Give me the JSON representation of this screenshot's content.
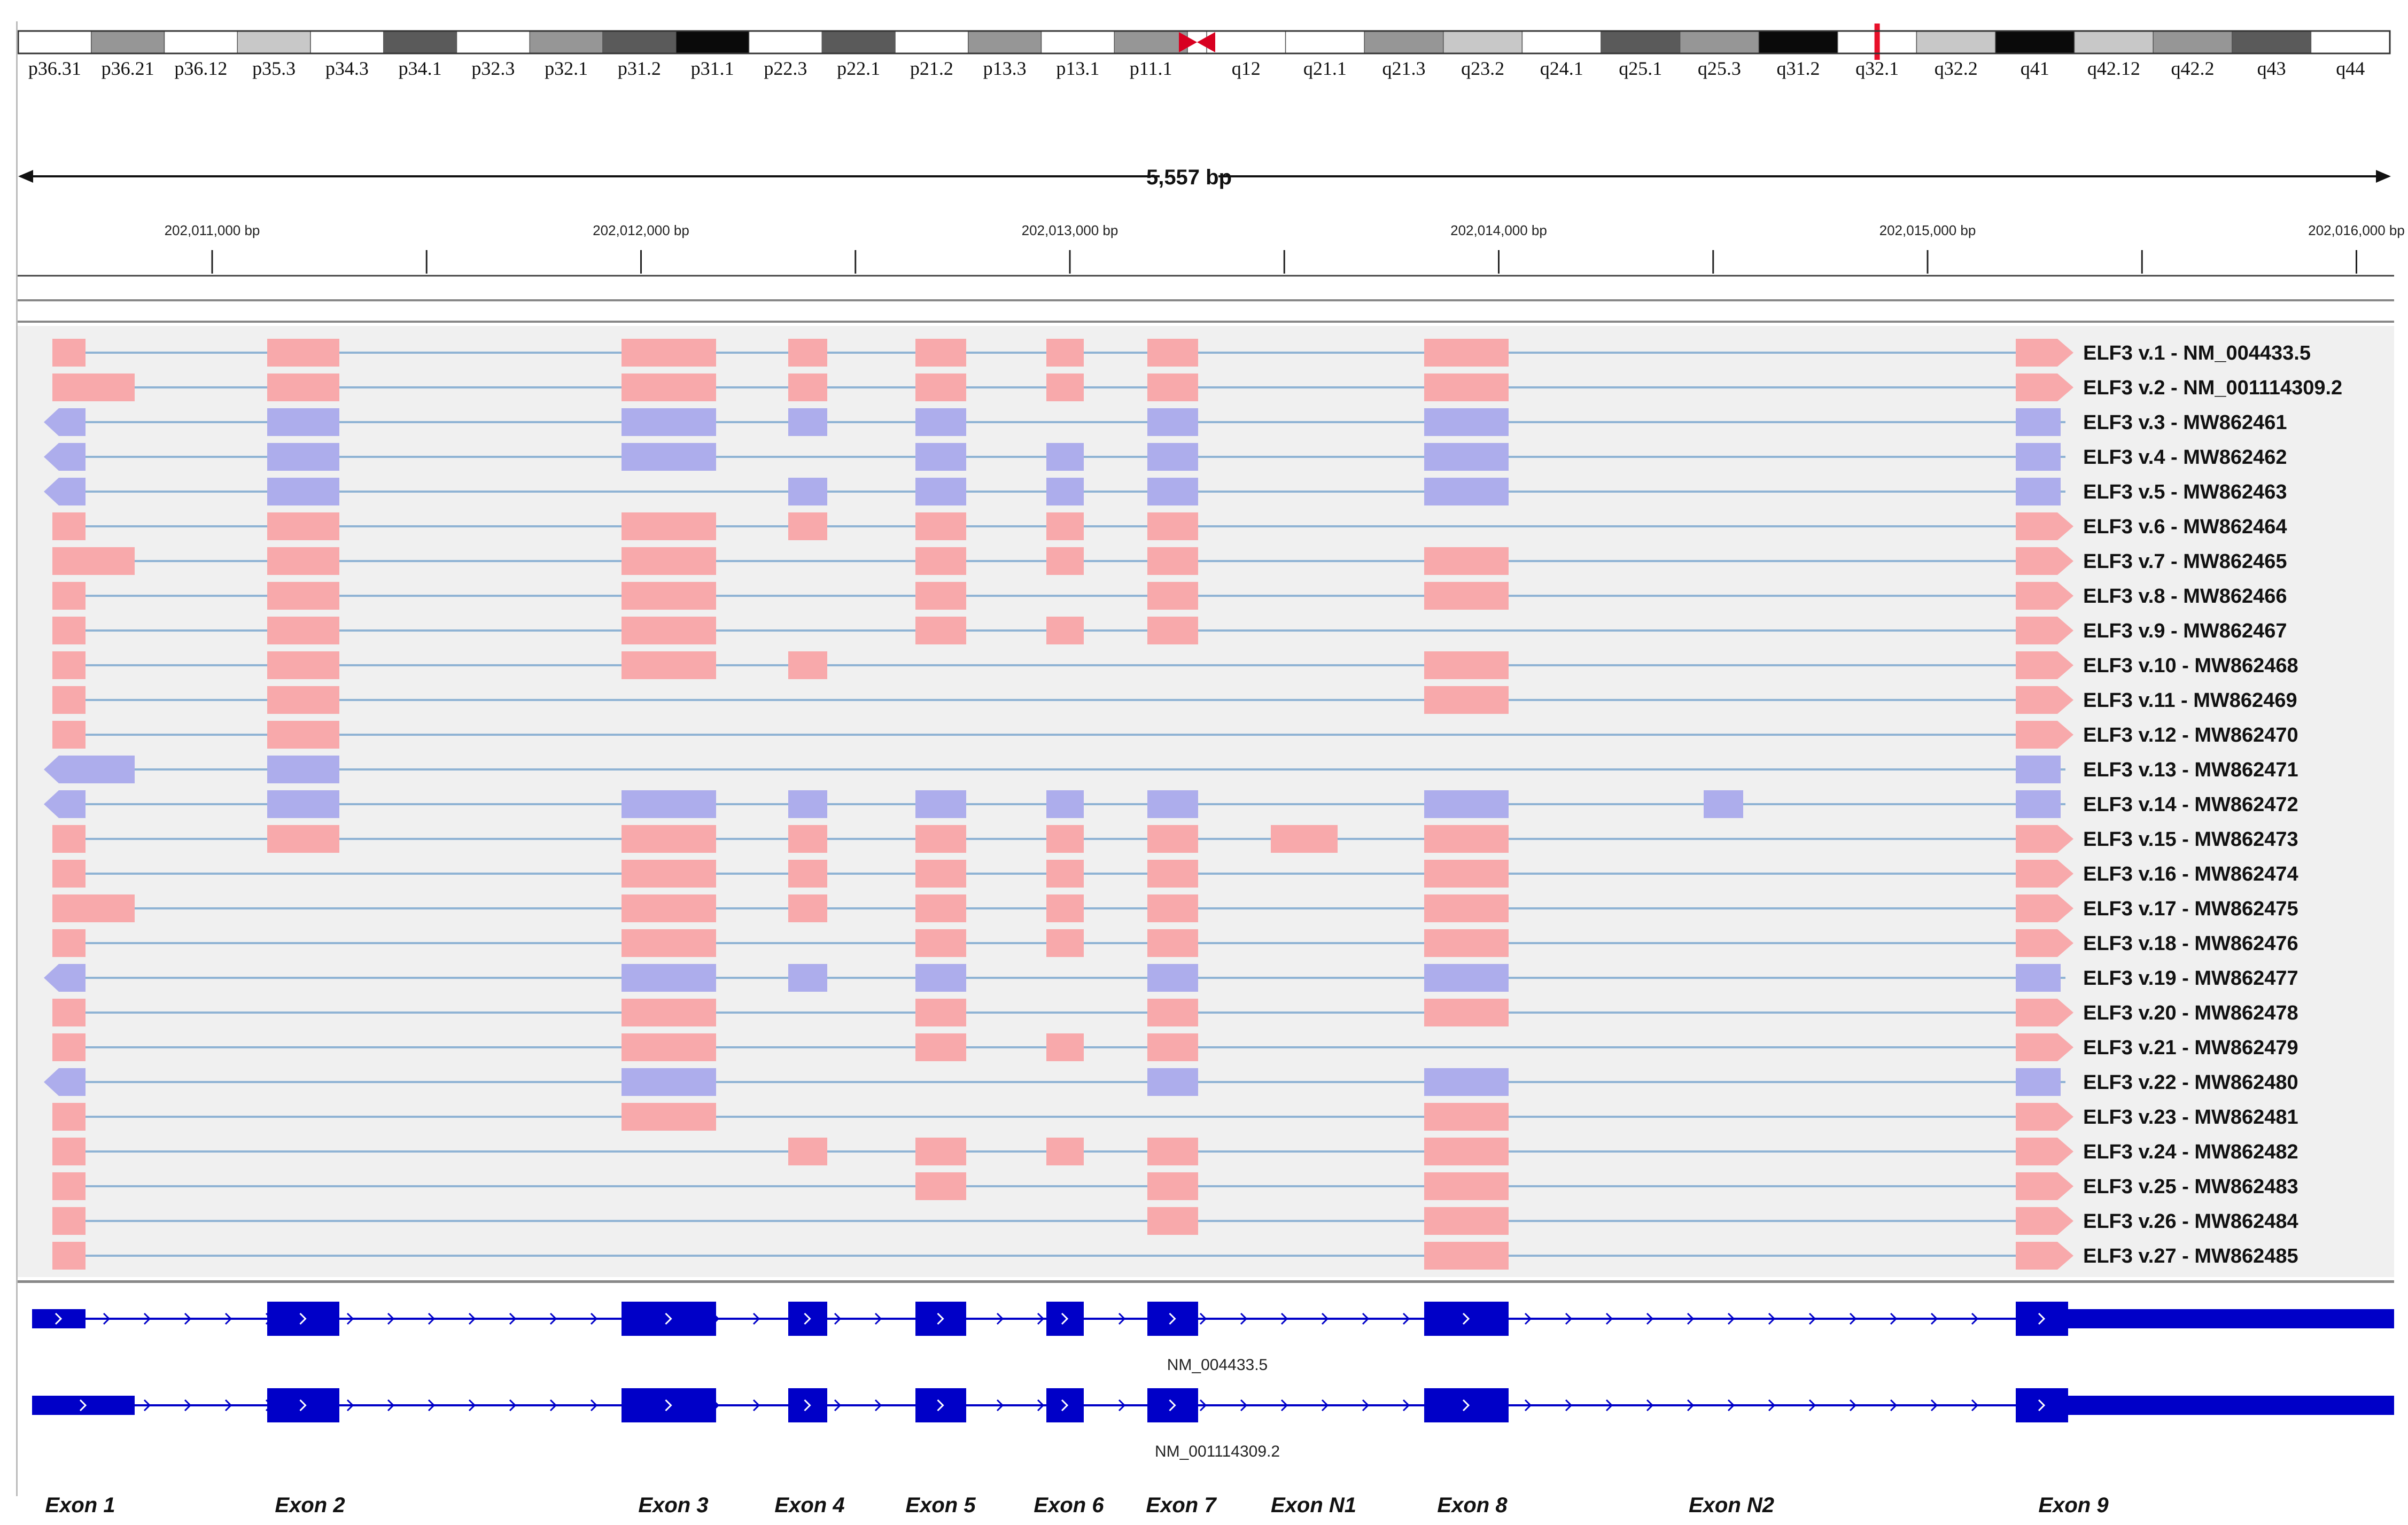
{
  "colors": {
    "panel_bg": "#f0f0f0",
    "plus_strand_exon": "#f8a9ab",
    "minus_strand_exon": "#adadec",
    "intron_line": "#8fb3d4",
    "refgene": "#0000c8",
    "current_locus_marker": "#e8102a",
    "centromere": "#d80020"
  },
  "ideogram": {
    "bands": [
      {
        "name": "p36.31",
        "shade": "gneg"
      },
      {
        "name": "p36.21",
        "shade": "gpos50"
      },
      {
        "name": "p36.12",
        "shade": "gneg"
      },
      {
        "name": "p35.3",
        "shade": "gpos25"
      },
      {
        "name": "p34.3",
        "shade": "gneg"
      },
      {
        "name": "p34.1",
        "shade": "gpos75"
      },
      {
        "name": "p32.3",
        "shade": "gneg"
      },
      {
        "name": "p32.1",
        "shade": "gpos50"
      },
      {
        "name": "p31.2",
        "shade": "gpos75"
      },
      {
        "name": "p31.1",
        "shade": "gpos100"
      },
      {
        "name": "p22.3",
        "shade": "gneg"
      },
      {
        "name": "p22.1",
        "shade": "gpos75"
      },
      {
        "name": "p21.2",
        "shade": "gneg"
      },
      {
        "name": "p13.3",
        "shade": "gpos50"
      },
      {
        "name": "p13.1",
        "shade": "gneg"
      },
      {
        "name": "p11.1",
        "shade": "gpos50"
      },
      {
        "name": "q12",
        "shade": "gneg"
      },
      {
        "name": "q21.1",
        "shade": "gneg"
      },
      {
        "name": "q21.3",
        "shade": "gpos50"
      },
      {
        "name": "q23.2",
        "shade": "gpos25"
      },
      {
        "name": "q24.1",
        "shade": "gneg"
      },
      {
        "name": "q25.1",
        "shade": "gpos75"
      },
      {
        "name": "q25.3",
        "shade": "gpos50"
      },
      {
        "name": "q31.2",
        "shade": "gpos100"
      },
      {
        "name": "q32.1",
        "shade": "gneg"
      },
      {
        "name": "q32.2",
        "shade": "gpos25"
      },
      {
        "name": "q41",
        "shade": "gpos100"
      },
      {
        "name": "q42.12",
        "shade": "gpos25"
      },
      {
        "name": "q42.2",
        "shade": "gpos50"
      },
      {
        "name": "q43",
        "shade": "gpos75"
      },
      {
        "name": "q44",
        "shade": "gneg"
      }
    ],
    "current_band": "q32.1"
  },
  "ruler": {
    "span_label": "5,557 bp",
    "tick_labels": [
      "202,011,000 bp",
      "202,012,000 bp",
      "202,013,000 bp",
      "202,014,000 bp",
      "202,015,000 bp",
      "202,016,000 bp"
    ]
  },
  "exon_columns": [
    "Exon 1",
    "Exon 2",
    "Exon 3",
    "Exon 4",
    "Exon 5",
    "Exon 6",
    "Exon 7",
    "Exon N1",
    "Exon 8",
    "Exon N2",
    "Exon 9"
  ],
  "transcripts": [
    {
      "name": "ELF3 v.1 - NM_004433.5",
      "strand": "+",
      "exons": [
        "E1",
        "E2",
        "E3",
        "E4",
        "E5",
        "E6",
        "E7",
        "E8",
        "E9"
      ]
    },
    {
      "name": "ELF3 v.2 - NM_001114309.2",
      "strand": "+",
      "exons": [
        "E1L",
        "E2",
        "E3",
        "E4",
        "E5",
        "E6",
        "E7",
        "E8",
        "E9"
      ]
    },
    {
      "name": "ELF3 v.3 - MW862461",
      "strand": "-",
      "exons": [
        "E1",
        "E2",
        "E3",
        "E4",
        "E5",
        "E7",
        "E8",
        "E9"
      ]
    },
    {
      "name": "ELF3 v.4 - MW862462",
      "strand": "-",
      "exons": [
        "E1",
        "E2",
        "E3",
        "E5",
        "E6",
        "E7",
        "E8",
        "E9"
      ]
    },
    {
      "name": "ELF3 v.5 - MW862463",
      "strand": "-",
      "exons": [
        "E1",
        "E2",
        "E4",
        "E5",
        "E6",
        "E7",
        "E8",
        "E9"
      ]
    },
    {
      "name": "ELF3 v.6 - MW862464",
      "strand": "+",
      "exons": [
        "E1",
        "E2",
        "E3",
        "E4",
        "E5",
        "E6",
        "E7",
        "E9"
      ]
    },
    {
      "name": "ELF3 v.7 - MW862465",
      "strand": "+",
      "exons": [
        "E1L",
        "E2",
        "E3",
        "E5",
        "E6",
        "E7",
        "E8",
        "E9"
      ]
    },
    {
      "name": "ELF3 v.8 - MW862466",
      "strand": "+",
      "exons": [
        "E1",
        "E2",
        "E3",
        "E5",
        "E7",
        "E8",
        "E9"
      ]
    },
    {
      "name": "ELF3 v.9 - MW862467",
      "strand": "+",
      "exons": [
        "E1",
        "E2",
        "E3",
        "E5",
        "E6",
        "E7",
        "E9"
      ]
    },
    {
      "name": "ELF3 v.10 - MW862468",
      "strand": "+",
      "exons": [
        "E1",
        "E2",
        "E3",
        "E4",
        "E8",
        "E9"
      ]
    },
    {
      "name": "ELF3 v.11 - MW862469",
      "strand": "+",
      "exons": [
        "E1",
        "E2",
        "E8",
        "E9"
      ]
    },
    {
      "name": "ELF3 v.12 - MW862470",
      "strand": "+",
      "exons": [
        "E1",
        "E2",
        "E9"
      ]
    },
    {
      "name": "ELF3 v.13 - MW862471",
      "strand": "-",
      "exons": [
        "E1L",
        "E2",
        "E9"
      ]
    },
    {
      "name": "ELF3 v.14 - MW862472",
      "strand": "-",
      "exons": [
        "E1",
        "E2",
        "E3",
        "E4",
        "E5",
        "E6",
        "E7",
        "E8",
        "N2",
        "E9"
      ]
    },
    {
      "name": "ELF3 v.15 - MW862473",
      "strand": "+",
      "exons": [
        "E1",
        "E2",
        "E3",
        "E4",
        "E5",
        "E6",
        "E7",
        "N1",
        "E8",
        "E9"
      ]
    },
    {
      "name": "ELF3 v.16 - MW862474",
      "strand": "+",
      "exons": [
        "E1",
        "E3",
        "E4",
        "E5",
        "E6",
        "E7",
        "E8",
        "E9"
      ]
    },
    {
      "name": "ELF3 v.17 - MW862475",
      "strand": "+",
      "exons": [
        "E1L",
        "E3",
        "E4",
        "E5",
        "E6",
        "E7",
        "E8",
        "E9"
      ]
    },
    {
      "name": "ELF3 v.18 - MW862476",
      "strand": "+",
      "exons": [
        "E1",
        "E3",
        "E5",
        "E6",
        "E7",
        "E8",
        "E9"
      ]
    },
    {
      "name": "ELF3 v.19 - MW862477",
      "strand": "-",
      "exons": [
        "E1",
        "E3",
        "E4",
        "E5",
        "E7",
        "E8",
        "E9"
      ]
    },
    {
      "name": "ELF3 v.20 - MW862478",
      "strand": "+",
      "exons": [
        "E1",
        "E3",
        "E5",
        "E7",
        "E8",
        "E9"
      ]
    },
    {
      "name": "ELF3 v.21 - MW862479",
      "strand": "+",
      "exons": [
        "E1",
        "E3",
        "E5",
        "E6",
        "E7",
        "E9"
      ]
    },
    {
      "name": "ELF3 v.22 - MW862480",
      "strand": "-",
      "exons": [
        "E1",
        "E3",
        "E7",
        "E8",
        "E9"
      ]
    },
    {
      "name": "ELF3 v.23 - MW862481",
      "strand": "+",
      "exons": [
        "E1",
        "E3",
        "E8",
        "E9"
      ]
    },
    {
      "name": "ELF3 v.24 - MW862482",
      "strand": "+",
      "exons": [
        "E1",
        "E4",
        "E5",
        "E6",
        "E7",
        "E8",
        "E9"
      ]
    },
    {
      "name": "ELF3 v.25 - MW862483",
      "strand": "+",
      "exons": [
        "E1",
        "E5",
        "E7",
        "E8",
        "E9"
      ]
    },
    {
      "name": "ELF3 v.26 - MW862484",
      "strand": "+",
      "exons": [
        "E1",
        "E7",
        "E8",
        "E9"
      ]
    },
    {
      "name": "ELF3 v.27 - MW862485",
      "strand": "+",
      "exons": [
        "E1",
        "E8",
        "E9"
      ]
    }
  ],
  "refgene_tracks": [
    {
      "name": "NM_004433.5"
    },
    {
      "name": "NM_001114309.2"
    }
  ]
}
